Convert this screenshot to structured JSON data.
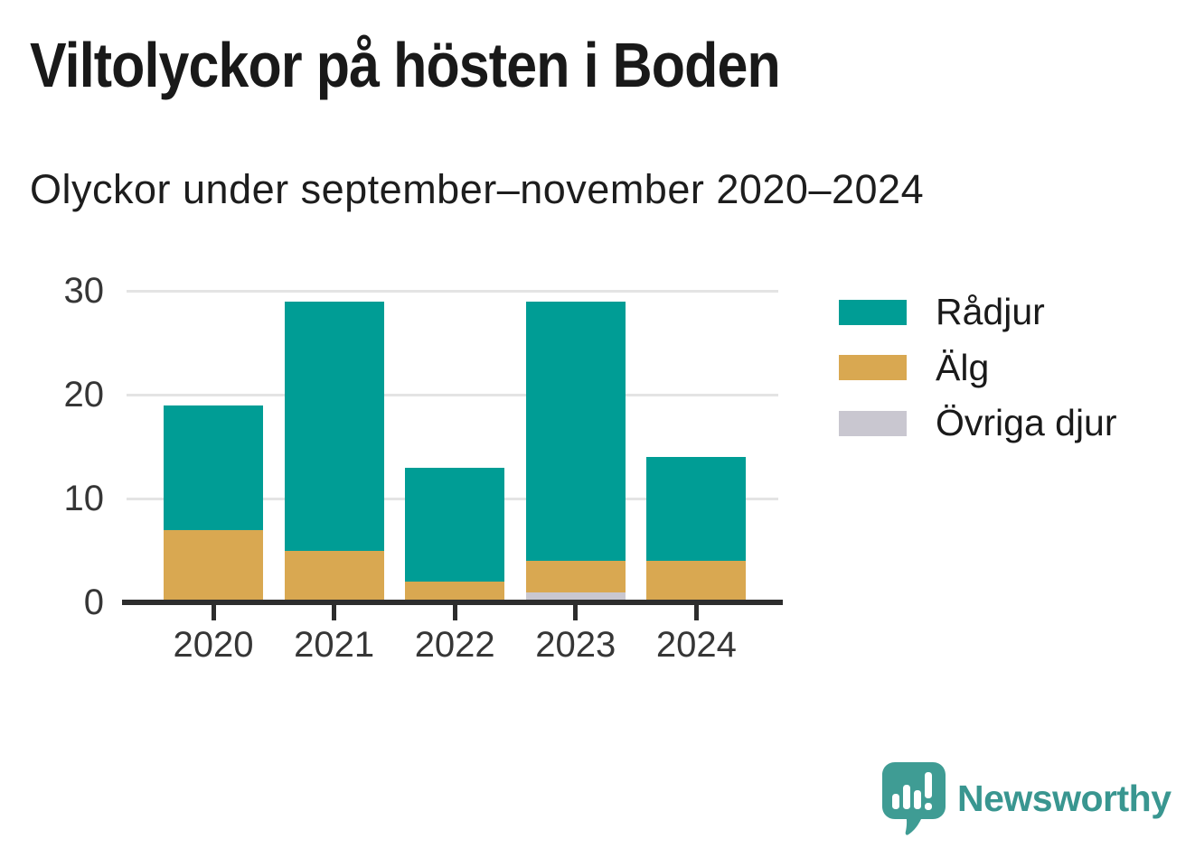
{
  "header": {
    "title": "Viltolyckor på hösten i Boden",
    "subtitle": "Olyckor under september–november 2020–2024"
  },
  "chart_data": {
    "type": "bar",
    "stacked": true,
    "title": "Viltolyckor på hösten i Boden",
    "subtitle": "Olyckor under september–november 2020–2024",
    "categories": [
      "2020",
      "2021",
      "2022",
      "2023",
      "2024"
    ],
    "series": [
      {
        "name": "Rådjur",
        "color": "#009d95",
        "values": [
          12,
          24,
          11,
          25,
          10
        ]
      },
      {
        "name": "Älg",
        "color": "#d9a851",
        "values": [
          7,
          5,
          2,
          3,
          4
        ]
      },
      {
        "name": "Övriga djur",
        "color": "#c9c7d0",
        "values": [
          0,
          0,
          0,
          1,
          0
        ]
      }
    ],
    "stack_order_bottom_to_top": [
      "Övriga djur",
      "Älg",
      "Rådjur"
    ],
    "stack_totals": [
      19,
      29,
      13,
      29,
      14
    ],
    "xlabel": "",
    "ylabel": "",
    "ylim": [
      0,
      30
    ],
    "yticks": [
      0,
      10,
      20,
      30
    ],
    "grid": "horizontal",
    "legend_position": "right"
  },
  "branding": {
    "wordmark": "Newsworthy",
    "logo_icon": "speech-bubble-bar-chart-icon",
    "bubble_color": "#3f9c94",
    "wordmark_color": "#399690"
  },
  "colors": {
    "axis": "#2d2d2d",
    "gridline": "#e4e4e4",
    "title_text": "#191919",
    "tick_text": "#363636",
    "background": "#ffffff"
  }
}
